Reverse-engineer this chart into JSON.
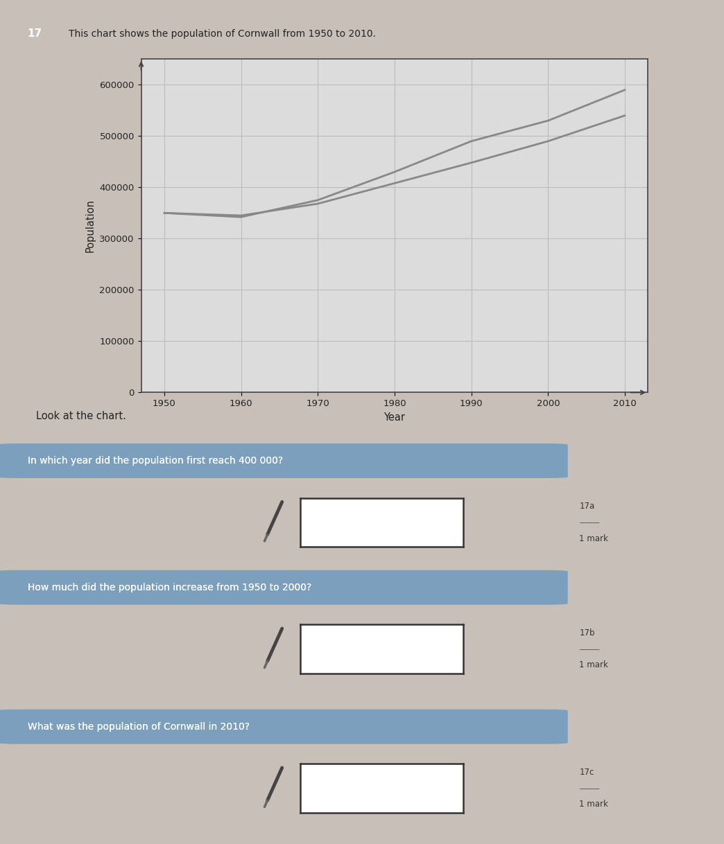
{
  "title": "This chart shows the population of Cornwall from 1950 to 2010.",
  "question_number": "17",
  "years": [
    1950,
    1960,
    1970,
    1980,
    1990,
    2000,
    2010
  ],
  "population": [
    350000,
    342000,
    375000,
    430000,
    490000,
    530000,
    590000
  ],
  "population2": [
    350000,
    345000,
    368000,
    408000,
    448000,
    490000,
    540000
  ],
  "ylabel": "Population",
  "xlabel": "Year",
  "yticks": [
    0,
    100000,
    200000,
    300000,
    400000,
    500000,
    600000
  ],
  "ytick_labels": [
    "0",
    "100000",
    "200000",
    "300000",
    "400000",
    "500000",
    "600000"
  ],
  "xlim_left": 1947,
  "xlim_right": 2013,
  "ylim": [
    0,
    650000
  ],
  "line_color": "#888888",
  "grid_color": "#bbbbbb",
  "chart_bg": "#dcdcdc",
  "page_bg": "#c8c0b8",
  "q1_text": "In which year did the population first reach 400 000?",
  "q2_text": "How much did the population increase from 1950 to 2000?",
  "q3_text": "What was the population of Cornwall in 2010?",
  "look_text": "Look at the chart.",
  "mark_label": "1 mark",
  "q1_ref": "17a",
  "q2_ref": "17b",
  "q3_ref": "17c",
  "banner_color": "#7b9fbc",
  "banner_text_color": "#ffffff",
  "box_border_color": "#333333",
  "text_color": "#222222",
  "num_box_color": "#333333",
  "num_text_color": "#ffffff"
}
